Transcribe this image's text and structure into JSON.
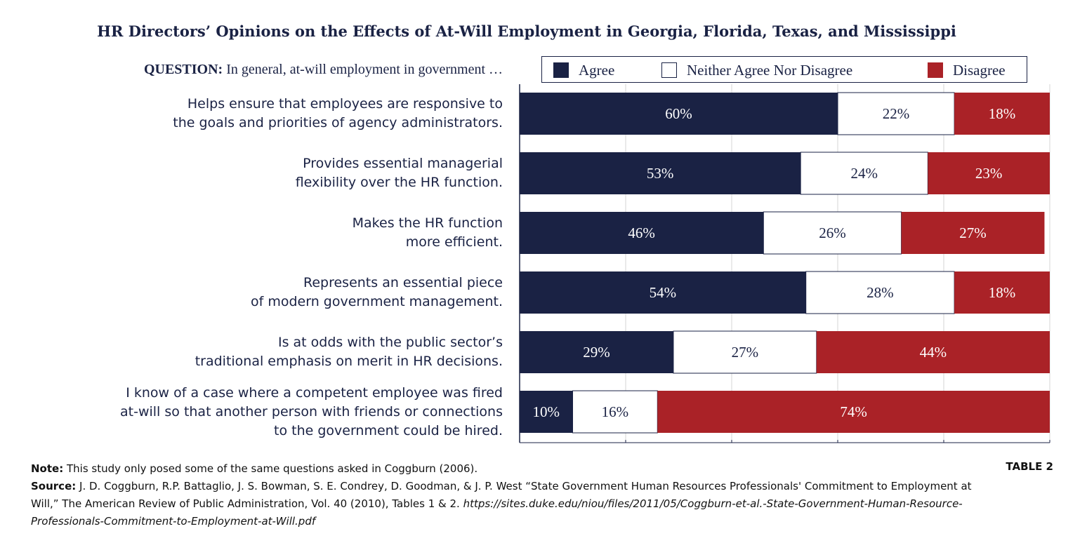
{
  "chart_data": {
    "type": "bar",
    "orientation": "horizontal",
    "stacked": true,
    "title": "HR Directors’ Opinions on the Effects of At-Will Employment in Georgia, Florida, Texas, and Mississippi",
    "question_label": "QUESTION:",
    "question_text": "In general, at-will employment in government …",
    "categories": [
      [
        "Helps ensure that employees are responsive to",
        "the goals and priorities of agency administrators."
      ],
      [
        "Provides essential managerial",
        "flexibility over the HR function."
      ],
      [
        "Makes the HR function",
        "more efficient."
      ],
      [
        "Represents an essential piece",
        "of modern government management."
      ],
      [
        "Is at odds with the public sector’s",
        "traditional emphasis on merit in HR decisions."
      ],
      [
        "I know of a case where a competent employee was fired",
        "at-will so that another person with friends or connections",
        "to the government could be hired."
      ]
    ],
    "series": [
      {
        "name": "Agree",
        "color": "#1a2244",
        "text_color": "#ffffff",
        "values": [
          60,
          53,
          46,
          54,
          29,
          10
        ],
        "labels": [
          "60%",
          "53%",
          "46%",
          "54%",
          "29%",
          "10%"
        ]
      },
      {
        "name": "Neither Agree Nor Disagree",
        "color": "#ffffff",
        "text_color": "#1a2244",
        "values": [
          22,
          24,
          26,
          28,
          27,
          16
        ],
        "labels": [
          "22%",
          "24%",
          "26%",
          "28%",
          "27%",
          "16%"
        ]
      },
      {
        "name": "Disagree",
        "color": "#aa2227",
        "text_color": "#ffffff",
        "values": [
          18,
          23,
          27,
          18,
          44,
          74
        ],
        "labels": [
          "18%",
          "23%",
          "27%",
          "18%",
          "44%",
          "74%"
        ]
      }
    ],
    "xlim": [
      0,
      100
    ],
    "grid": true,
    "legend_position": "top"
  },
  "note": {
    "label": "Note:",
    "text": "This study only posed some of the same questions asked in Coggburn (2006)."
  },
  "source": {
    "label": "Source:",
    "text": "J. D. Coggburn, R.P. Battaglio, J. S. Bowman, S. E. Condrey, D. Goodman, & J. P. West “State Government Human Resources Professionals' Commitment to Employment at Will,” The American Review of Public Administration, Vol. 40 (2010), Tables 1 & 2.",
    "url": "https://sites.duke.edu/niou/files/2011/05/Coggburn-et-al.-State-Government-Human-Resource-Professionals-Commitment-to-Employment-at-Will.pdf"
  },
  "table_number": "TABLE 2"
}
